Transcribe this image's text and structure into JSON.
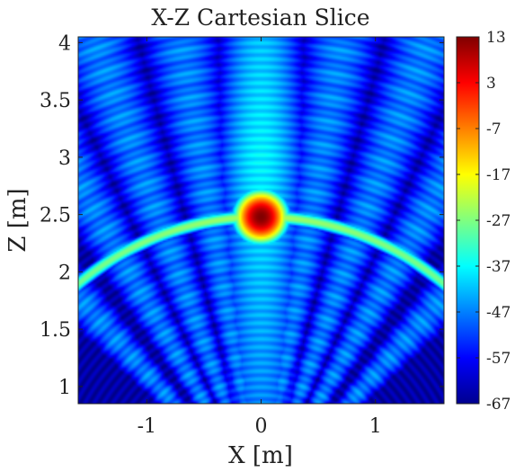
{
  "chart_data": {
    "type": "heatmap",
    "title": "X-Z Cartesian Slice",
    "xlabel": "X [m]",
    "ylabel": "Z [m]",
    "xlim": [
      -1.6,
      1.6
    ],
    "ylim": [
      0.85,
      4.05
    ],
    "xticks": [
      -1,
      0,
      1
    ],
    "xtick_labels": [
      "-1",
      "0",
      "1"
    ],
    "yticks": [
      1,
      1.5,
      2,
      2.5,
      3,
      3.5,
      4
    ],
    "ytick_labels": [
      "1",
      "1.5",
      "2",
      "2.5",
      "3",
      "3.5",
      "4"
    ],
    "colorbar": {
      "colormap": "jet",
      "range": [
        -67,
        13
      ],
      "ticks": [
        13,
        3,
        -7,
        -17,
        -27,
        -37,
        -47,
        -57,
        -67
      ],
      "tick_labels": [
        "13",
        "3",
        "-7",
        "-17",
        "-27",
        "-37",
        "-47",
        "-57",
        "-67"
      ]
    },
    "features": {
      "arc_peak": {
        "x": 0.0,
        "z": 2.48,
        "value": 13
      },
      "arc_shape": {
        "center_x": 0.0,
        "center_z": 0.0,
        "radius": 2.48,
        "width": 0.04
      },
      "central_beam_x": 0.0,
      "side_lobe_angles_deg": [
        -42,
        -30,
        -20,
        -10,
        10,
        20,
        30,
        42
      ]
    }
  }
}
